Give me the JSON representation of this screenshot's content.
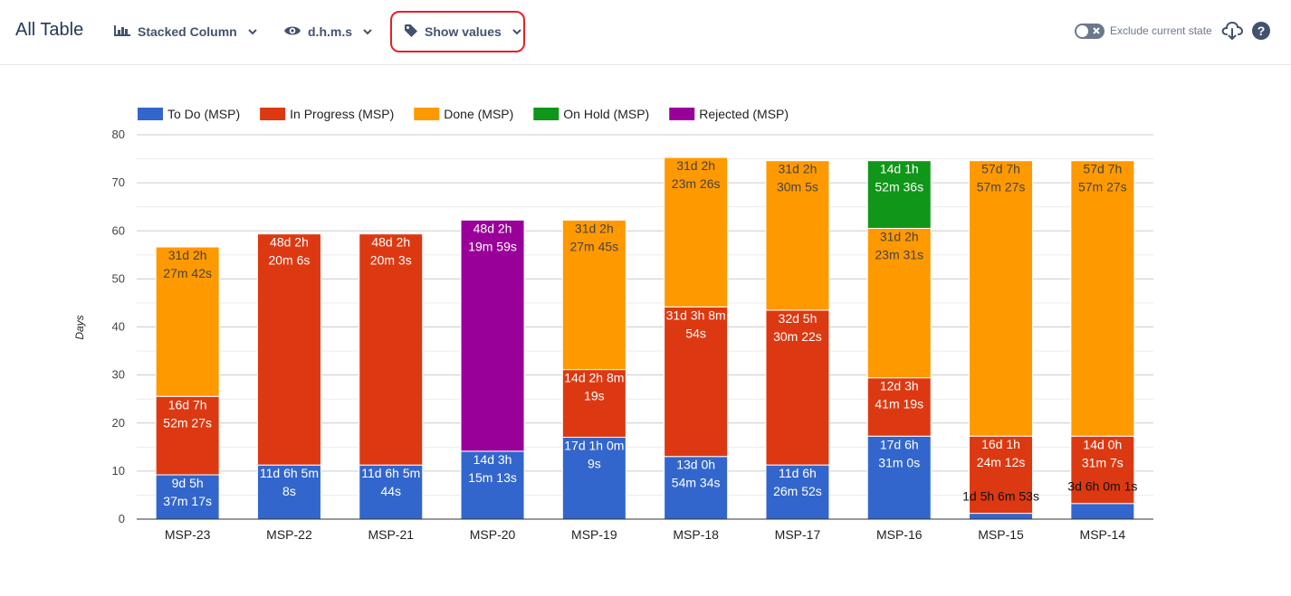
{
  "toolbar": {
    "title": "All Table",
    "chart_type_label": "Stacked Column",
    "units_label": "d.h.m.s",
    "values_label": "Show values",
    "exclude_label": "Exclude current state",
    "icons": {
      "chart_type": "bar-chart-icon",
      "units": "eye-icon",
      "values": "tag-icon",
      "download": "cloud-download-icon",
      "help": "help-icon"
    }
  },
  "chart_data": {
    "type": "bar",
    "stacked": true,
    "ylabel": "Days",
    "ylim": [
      0,
      80
    ],
    "yticks": [
      0,
      10,
      20,
      30,
      40,
      50,
      60,
      70,
      80
    ],
    "grid": true,
    "legend_position": "top-left",
    "categories": [
      "MSP-23",
      "MSP-22",
      "MSP-21",
      "MSP-20",
      "MSP-19",
      "MSP-18",
      "MSP-17",
      "MSP-16",
      "MSP-15",
      "MSP-14"
    ],
    "series": [
      {
        "name": "To Do (MSP)",
        "color": "#3366cc",
        "values": [
          9.22,
          11.26,
          11.26,
          14.14,
          17.04,
          13.04,
          11.27,
          17.27,
          1.21,
          3.25
        ],
        "labels": [
          "9d 5h\n37m 17s",
          "11d 6h 5m\n8s",
          "11d 6h 5m\n44s",
          "14d 3h\n15m 13s",
          "17d 1h 0m\n9s",
          "13d 0h\n54m 34s",
          "11d 6h\n26m 52s",
          "17d 6h\n31m 0s",
          "1d 5h 6m 53s",
          "3d 6h 0m 1s"
        ]
      },
      {
        "name": "In Progress (MSP)",
        "color": "#dc3912",
        "values": [
          16.33,
          48.1,
          48.1,
          null,
          14.09,
          31.13,
          32.23,
          12.15,
          16.07,
          14.02
        ],
        "labels": [
          "16d 7h\n52m 27s",
          "48d 2h\n20m 6s",
          "48d 2h\n20m 3s",
          "",
          "14d 2h 8m\n19s",
          "31d 3h 8m\n54s",
          "32d 5h\n30m 22s",
          "12d 3h\n41m 19s",
          "16d 1h\n24m 12s",
          "14d 0h\n31m 7s"
        ]
      },
      {
        "name": "Done (MSP)",
        "color": "#ff9900",
        "values": [
          31.1,
          null,
          null,
          null,
          31.1,
          31.1,
          31.1,
          31.1,
          57.32,
          57.32
        ],
        "labels": [
          "31d 2h\n27m 42s",
          "",
          "",
          "",
          "31d 2h\n27m 45s",
          "31d 2h\n23m 26s",
          "31d 2h\n30m 5s",
          "31d 2h\n23m 31s",
          "57d 7h\n57m 27s",
          "57d 7h\n57m 27s"
        ]
      },
      {
        "name": "On Hold (MSP)",
        "color": "#109618",
        "values": [
          null,
          null,
          null,
          null,
          null,
          null,
          null,
          14.08,
          null,
          null
        ],
        "labels": [
          "",
          "",
          "",
          "",
          "",
          "",
          "",
          "14d 1h\n52m 36s",
          "",
          ""
        ]
      },
      {
        "name": "Rejected (MSP)",
        "color": "#990099",
        "values": [
          null,
          null,
          null,
          48.1,
          null,
          null,
          null,
          null,
          null,
          null
        ],
        "labels": [
          "",
          "",
          "",
          "48d 2h\n19m 59s",
          "",
          "",
          "",
          "",
          "",
          ""
        ]
      }
    ]
  }
}
